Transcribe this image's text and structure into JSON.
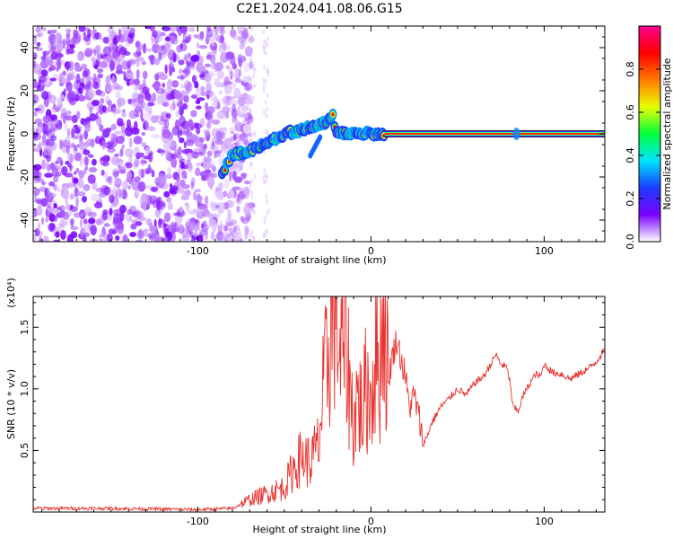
{
  "title": "C2E1.2024.041.08.06.G15",
  "chart_data": [
    {
      "type": "heatmap",
      "xlabel": "Height of straight line (km)",
      "ylabel": "Frequency (Hz)",
      "xlim": [
        -195,
        135
      ],
      "ylim": [
        -50,
        50
      ],
      "xticks": [
        -100,
        0,
        100
      ],
      "yticks": [
        40,
        20,
        0,
        -20,
        -40
      ],
      "colorbar": {
        "label": "Normalized spectral amplitude",
        "range": [
          0.0,
          1.0
        ],
        "ticks": [
          "0.0",
          "0.2",
          "0.4",
          "0.6",
          "0.8"
        ],
        "colors": [
          "#ffffff",
          "#7b00ff",
          "#1a3cff",
          "#00e5ff",
          "#00ff3c",
          "#e8ff00",
          "#ff7a00",
          "#ff0000",
          "#ff0090"
        ]
      },
      "ridge": {
        "x": [
          -86,
          -80,
          -70,
          -60,
          -50,
          -40,
          -30,
          -25,
          -22,
          -20,
          -10,
          0,
          10,
          50,
          100,
          135
        ],
        "y": [
          -18,
          -10,
          -8,
          -4,
          0,
          2,
          4,
          6,
          8,
          0,
          0,
          0,
          0,
          0,
          0,
          0
        ]
      },
      "steady_line": {
        "x_start": 8,
        "x_end": 135,
        "frequency": 0,
        "amplitude": 0.85
      },
      "noise_region": {
        "x_start": -195,
        "x_end": -75
      }
    },
    {
      "type": "line",
      "xlabel": "Height of straight line (km)",
      "ylabel": "SNR (10 * v/v)",
      "y_multiplier_label": "(x10⁴)",
      "xlim": [
        -195,
        135
      ],
      "ylim": [
        0,
        1.75
      ],
      "xticks": [
        -100,
        0,
        100
      ],
      "yticks": [
        0.5,
        1.0,
        1.5
      ],
      "line_color": "#e8332f",
      "series": [
        {
          "x": [
            -195,
            -150,
            -100,
            -80,
            -70,
            -60,
            -50,
            -45,
            -40,
            -35,
            -30,
            -28,
            -25,
            -22,
            -20,
            -18,
            -15,
            -12,
            -10,
            -8,
            -5,
            -3,
            0,
            3,
            5,
            7,
            10,
            12,
            15,
            18,
            20,
            22,
            25,
            28,
            30,
            32,
            35,
            40,
            45,
            50,
            55,
            60,
            65,
            70,
            72,
            75,
            78,
            80,
            82,
            85,
            88,
            90,
            92,
            95,
            98,
            100,
            105,
            110,
            115,
            120,
            125,
            130,
            135
          ],
          "y": [
            0.03,
            0.03,
            0.02,
            0.03,
            0.1,
            0.15,
            0.2,
            0.35,
            0.45,
            0.4,
            0.55,
            0.9,
            1.25,
            1.6,
            1.75,
            1.2,
            1.4,
            1.0,
            0.7,
            0.95,
            0.8,
            1.0,
            0.95,
            1.3,
            1.1,
            1.7,
            1.05,
            1.25,
            1.4,
            1.2,
            1.1,
            0.85,
            0.95,
            0.75,
            0.55,
            0.6,
            0.72,
            0.85,
            0.92,
            1.0,
            0.95,
            1.05,
            1.1,
            1.22,
            1.28,
            1.2,
            1.18,
            1.08,
            0.85,
            0.82,
            0.95,
            1.0,
            1.05,
            1.12,
            1.1,
            1.2,
            1.13,
            1.12,
            1.08,
            1.12,
            1.16,
            1.22,
            1.32
          ]
        }
      ]
    }
  ]
}
